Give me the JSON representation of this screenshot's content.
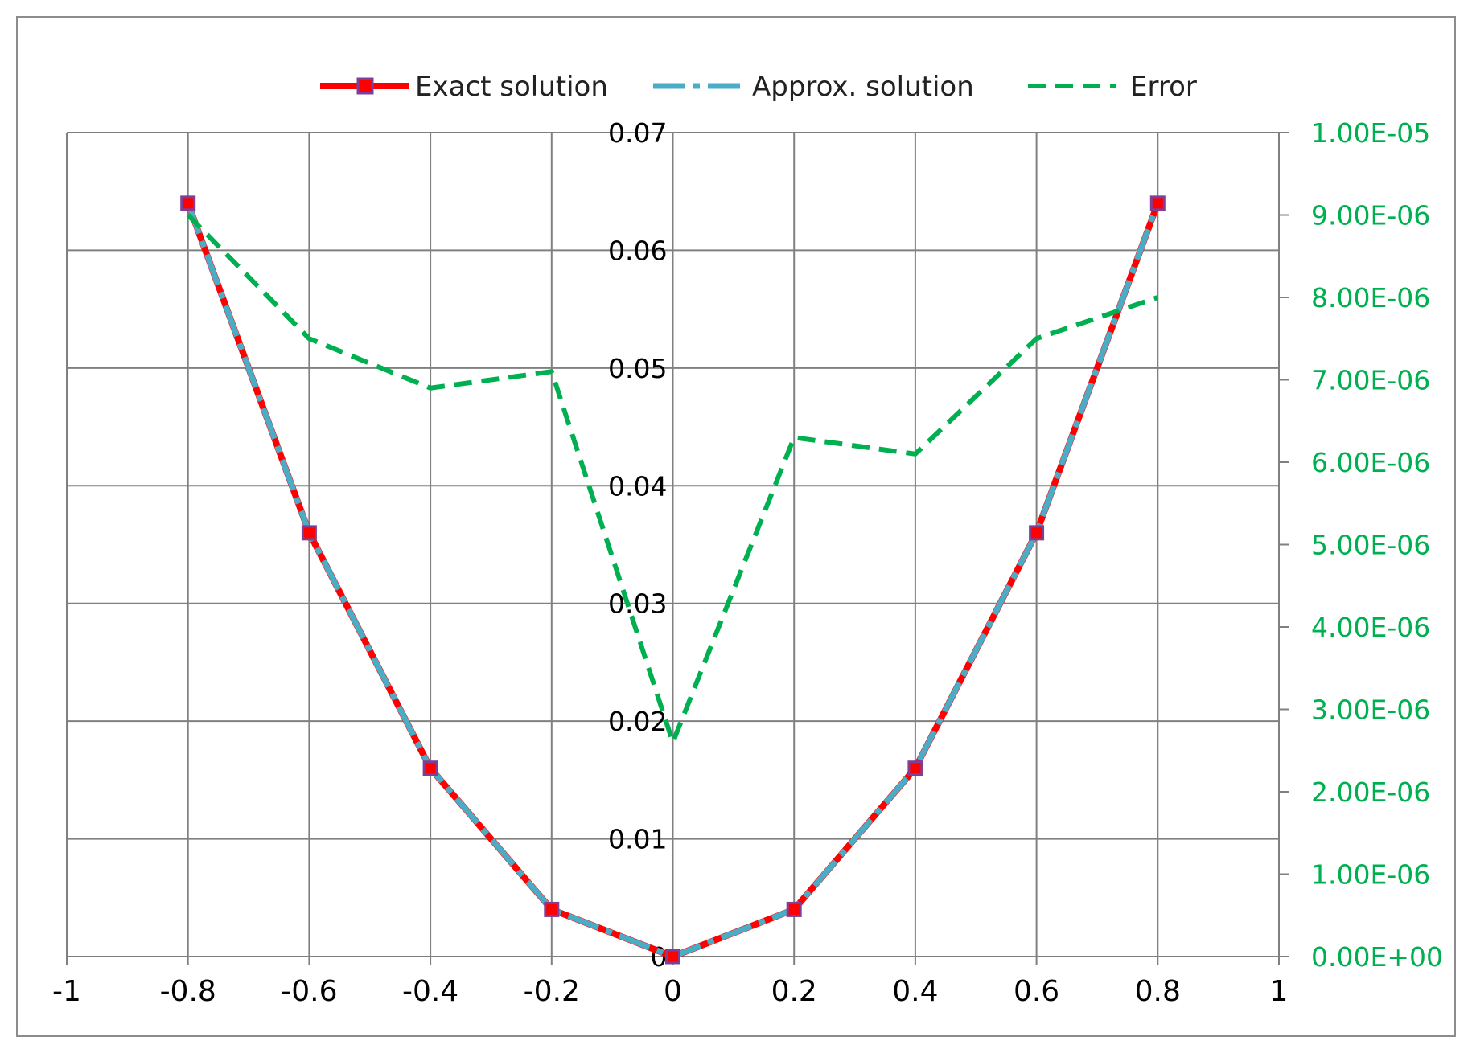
{
  "chart_data": {
    "type": "line",
    "x": [
      -0.8,
      -0.6,
      -0.4,
      -0.2,
      0,
      0.2,
      0.4,
      0.6,
      0.8
    ],
    "xlim": [
      -1,
      1
    ],
    "x_ticks": [
      "-1",
      "-0.8",
      "-0.6",
      "-0.4",
      "-0.2",
      "0",
      "0.2",
      "0.4",
      "0.6",
      "0.8",
      "1"
    ],
    "ylim": [
      0,
      0.07
    ],
    "y_ticks": [
      "0",
      "0.01",
      "0.02",
      "0.03",
      "0.04",
      "0.05",
      "0.06",
      "0.07"
    ],
    "y2lim": [
      0,
      1e-05
    ],
    "y2_ticks": [
      "0.00E+00",
      "1.00E-06",
      "2.00E-06",
      "3.00E-06",
      "4.00E-06",
      "5.00E-06",
      "6.00E-06",
      "7.00E-06",
      "8.00E-06",
      "9.00E-06",
      "1.00E-05"
    ],
    "grid": true,
    "legend_position": "top",
    "series": [
      {
        "name": "Exact solution",
        "axis": "left",
        "color": "#ff0000",
        "marker_color": "#7f3f98",
        "style": "solid-markers",
        "values": [
          0.064,
          0.036,
          0.016,
          0.004,
          0.0,
          0.004,
          0.016,
          0.036,
          0.064
        ]
      },
      {
        "name": "Approx. solution",
        "axis": "left",
        "color": "#4bacc6",
        "style": "dash-dot",
        "values": [
          0.064,
          0.036,
          0.016,
          0.004,
          0.0,
          0.004,
          0.016,
          0.036,
          0.064
        ]
      },
      {
        "name": "Error",
        "axis": "right",
        "color": "#00b050",
        "style": "dashed",
        "values": [
          9e-06,
          7.5e-06,
          6.9e-06,
          7.1e-06,
          2.6e-06,
          6.3e-06,
          6.1e-06,
          7.5e-06,
          8e-06
        ]
      }
    ],
    "colors": {
      "right_axis_text": "#00b050",
      "grid": "#808080"
    }
  }
}
